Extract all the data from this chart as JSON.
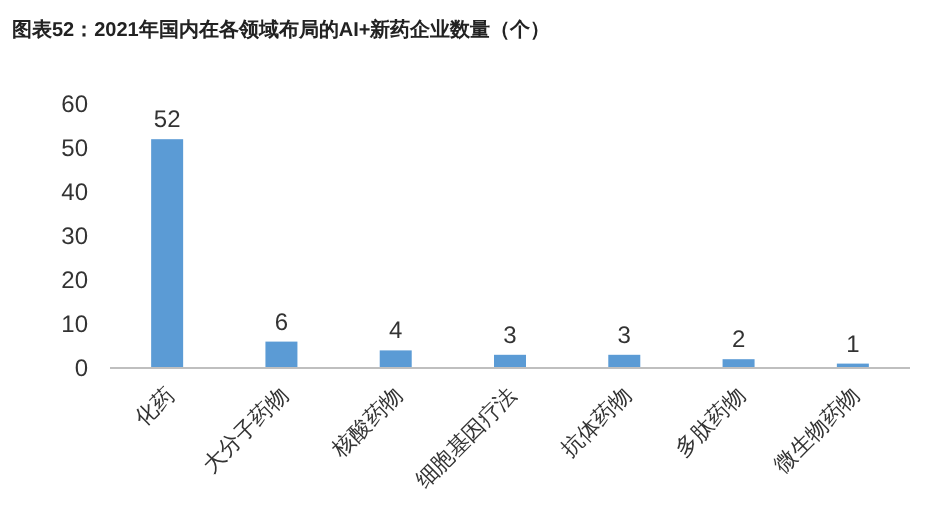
{
  "chart_data": {
    "type": "bar",
    "title": "图表52：2021年国内在各领域布局的AI+新药企业数量（个）",
    "categories": [
      "化药",
      "大分子药物",
      "核酸药物",
      "细胞基因疗法",
      "抗体药物",
      "多肽药物",
      "微生物药物"
    ],
    "values": [
      52,
      6,
      4,
      3,
      3,
      2,
      1
    ],
    "color": "#5b9bd5",
    "ylim": [
      0,
      60
    ],
    "yticks": [
      0,
      10,
      20,
      30,
      40,
      50,
      60
    ],
    "data_labels": true,
    "grid": false
  }
}
